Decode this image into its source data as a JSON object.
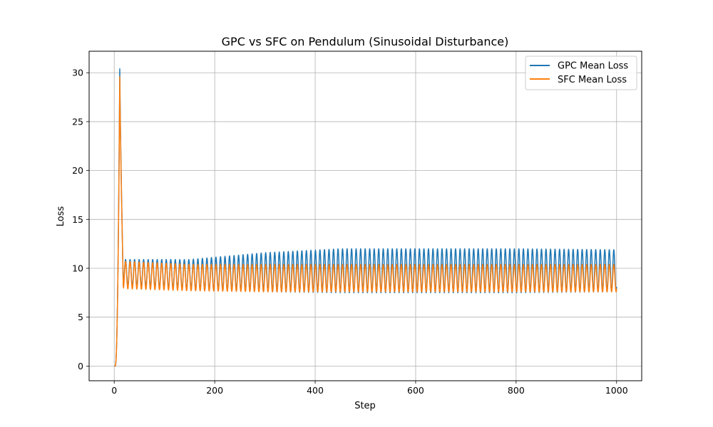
{
  "chart_data": {
    "type": "line",
    "title": "GPC vs SFC on Pendulum (Sinusoidal Disturbance)",
    "xlabel": "Step",
    "ylabel": "Loss",
    "xlim": [
      -50,
      1050
    ],
    "ylim": [
      -1.5,
      32.2
    ],
    "xticks": [
      0,
      200,
      400,
      600,
      800,
      1000
    ],
    "yticks": [
      0,
      5,
      10,
      15,
      20,
      25,
      30
    ],
    "grid": true,
    "legend_position": "top-right",
    "series": [
      {
        "name": "GPC Mean Loss",
        "color": "#1f77b4",
        "peak": {
          "x": 11,
          "y": 30.4
        },
        "steady_oscillation": {
          "period": 9,
          "amplitude_profile": [
            {
              "x": 25,
              "low": 8.2,
              "high": 10.9
            },
            {
              "x": 150,
              "low": 7.8,
              "high": 10.9
            },
            {
              "x": 300,
              "low": 7.6,
              "high": 11.6
            },
            {
              "x": 450,
              "low": 7.5,
              "high": 12.0
            },
            {
              "x": 600,
              "low": 7.5,
              "high": 12.0
            },
            {
              "x": 800,
              "low": 7.5,
              "high": 12.0
            },
            {
              "x": 1000,
              "low": 7.6,
              "high": 11.9
            }
          ]
        }
      },
      {
        "name": "SFC Mean Loss",
        "color": "#ff7f0e",
        "peak": {
          "x": 11,
          "y": 29.6
        },
        "steady_oscillation": {
          "period": 9,
          "amplitude_profile": [
            {
              "x": 25,
              "low": 7.9,
              "high": 10.7
            },
            {
              "x": 150,
              "low": 7.7,
              "high": 10.4
            },
            {
              "x": 300,
              "low": 7.6,
              "high": 10.4
            },
            {
              "x": 600,
              "low": 7.6,
              "high": 10.4
            },
            {
              "x": 1000,
              "low": 7.6,
              "high": 10.4
            }
          ]
        }
      }
    ]
  }
}
